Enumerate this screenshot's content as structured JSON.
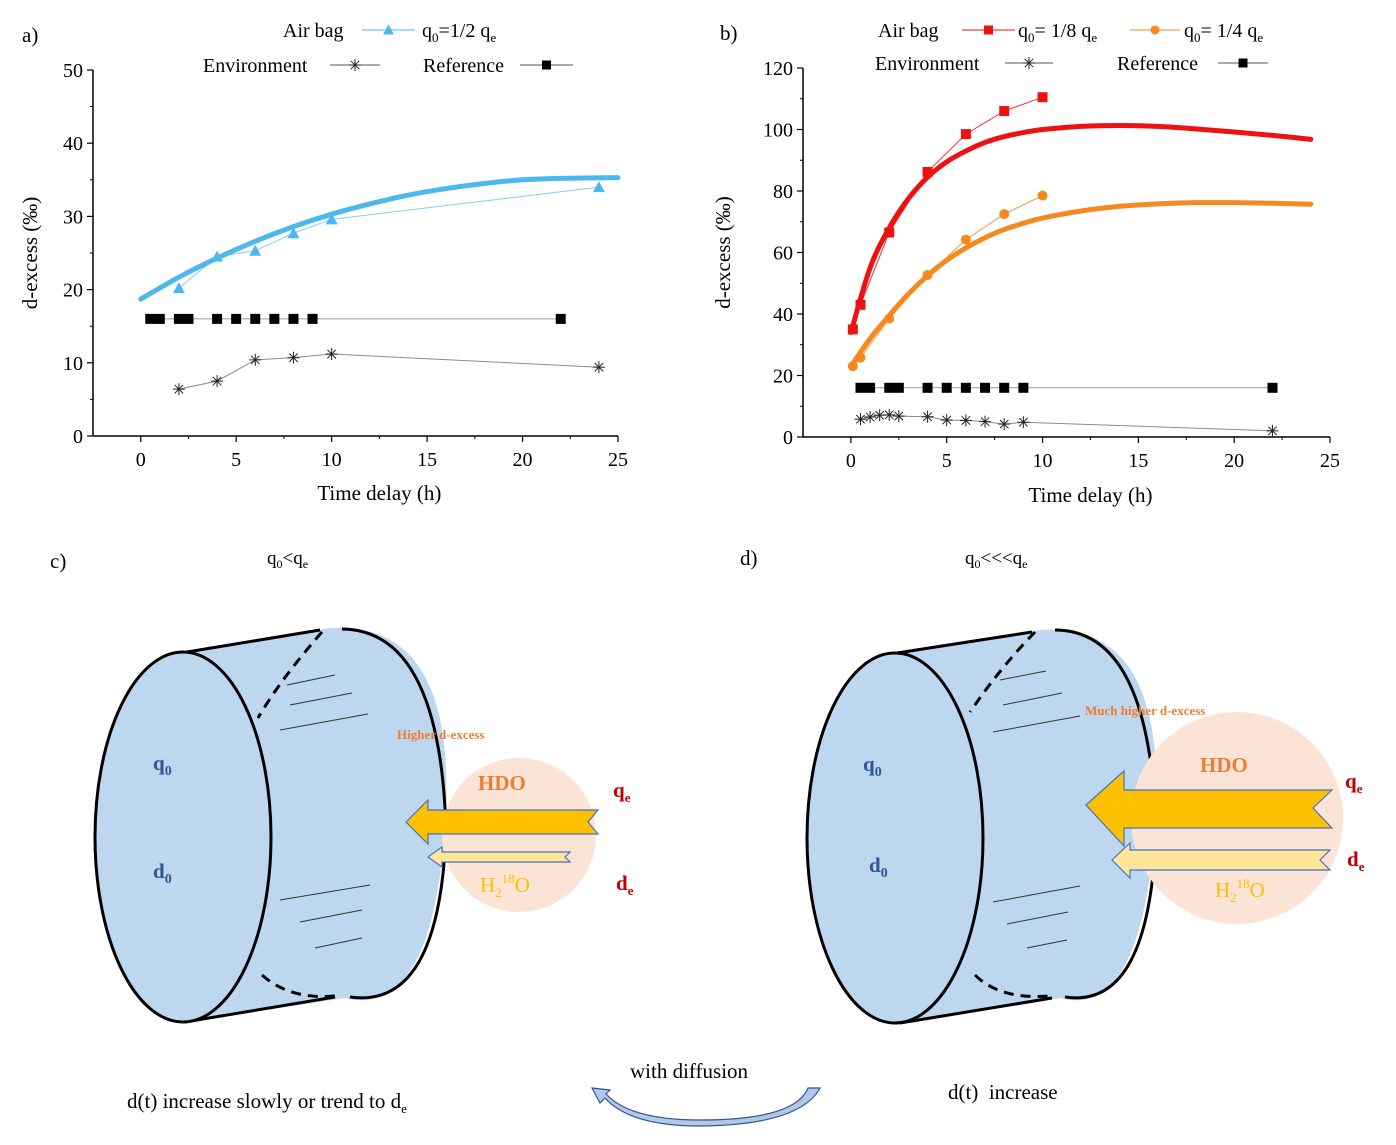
{
  "chart_data": [
    {
      "panel": "a)",
      "type": "line",
      "xlabel": "Time delay (h)",
      "ylabel": "d-excess (‰)",
      "xlim": [
        -2.5,
        25
      ],
      "ylim": [
        0,
        50
      ],
      "xticks": [
        0,
        5,
        10,
        15,
        20,
        25
      ],
      "yticks": [
        0,
        10,
        20,
        30,
        40,
        50
      ],
      "legend": {
        "placement": "top",
        "title": "Air bag",
        "entries": [
          {
            "label": "q0=1/2 qe",
            "main": "q",
            "sub": "0",
            "mid": "=1/2 q",
            "sub2": "e",
            "marker": "triangle",
            "color": "#4db8ee"
          },
          {
            "label": "Environment",
            "marker": "asterisk",
            "color": "#555555"
          },
          {
            "label": "Reference",
            "marker": "square",
            "color": "#000000"
          }
        ]
      },
      "series": [
        {
          "name": "q0=1/2 qe",
          "color": "#4db8ee",
          "marker": "triangle",
          "x": [
            2,
            4,
            6,
            8,
            10,
            24
          ],
          "y": [
            20.2,
            24.5,
            25.3,
            27.7,
            29.6,
            34.0
          ]
        },
        {
          "name": "Environment",
          "color": "#555555",
          "marker": "asterisk",
          "x": [
            2,
            4,
            6,
            8,
            10,
            24
          ],
          "y": [
            6.4,
            7.5,
            10.4,
            10.7,
            11.2,
            9.4
          ]
        },
        {
          "name": "Reference",
          "color": "#000000",
          "marker": "square",
          "x": [
            0.5,
            1,
            2,
            2.5,
            4,
            5,
            6,
            7,
            8,
            9,
            22
          ],
          "y": [
            16,
            16,
            16,
            16,
            16,
            16,
            16,
            16,
            16,
            16,
            16
          ]
        }
      ],
      "fits": [
        {
          "name": "q0=1/2 qe fit",
          "color": "#4db8ee",
          "x": [
            0,
            2,
            4,
            6,
            8,
            10,
            12,
            14,
            16,
            18,
            20,
            22,
            25
          ],
          "y": [
            18.7,
            21.7,
            24.3,
            26.6,
            28.6,
            30.3,
            31.7,
            32.9,
            33.8,
            34.5,
            35.0,
            35.2,
            35.3
          ]
        }
      ]
    },
    {
      "panel": "b)",
      "type": "line",
      "xlabel": "Time delay (h)",
      "ylabel": "d-excess (‰)",
      "xlim": [
        -2.5,
        25
      ],
      "ylim": [
        0,
        120
      ],
      "xticks": [
        0,
        5,
        10,
        15,
        20,
        25
      ],
      "yticks": [
        0,
        20,
        40,
        60,
        80,
        100,
        120
      ],
      "legend": {
        "placement": "top",
        "title": "Air bag",
        "entries": [
          {
            "label": "q0= 1/8 qe",
            "main": "q",
            "sub": "0",
            "mid": "= 1/8 q",
            "sub2": "e",
            "marker": "square",
            "color": "#ee1111"
          },
          {
            "label": "q0= 1/4 qe",
            "main": "q",
            "sub": "0",
            "mid": "= 1/4 q",
            "sub2": "e",
            "marker": "circle",
            "color": "#f5891f"
          },
          {
            "label": "Environment",
            "marker": "asterisk",
            "color": "#555555"
          },
          {
            "label": "Reference",
            "marker": "square",
            "color": "#000000"
          }
        ]
      },
      "series": [
        {
          "name": "q0= 1/8 qe",
          "color": "#ee1111",
          "marker": "square",
          "x": [
            0.1,
            0.5,
            2,
            4,
            6,
            8,
            10
          ],
          "y": [
            35,
            43,
            66.5,
            86.2,
            98.5,
            106,
            110.5
          ]
        },
        {
          "name": "q0= 1/4 qe",
          "color": "#f5891f",
          "marker": "circle",
          "x": [
            0.1,
            0.5,
            2,
            4,
            6,
            8,
            10
          ],
          "y": [
            23,
            25.8,
            38.5,
            52.7,
            64.2,
            72.5,
            78.5
          ]
        },
        {
          "name": "Environment",
          "color": "#555555",
          "marker": "asterisk",
          "x": [
            0.5,
            1,
            1.5,
            2,
            2.5,
            4,
            5,
            6,
            7,
            8,
            9,
            22
          ],
          "y": [
            5.8,
            6.5,
            7.1,
            7.2,
            6.8,
            6.6,
            5.5,
            5.4,
            5.0,
            4.2,
            4.8,
            2.0
          ]
        },
        {
          "name": "Reference",
          "color": "#000000",
          "marker": "square",
          "x": [
            0.5,
            1,
            2,
            2.5,
            4,
            5,
            6,
            7,
            8,
            9,
            22
          ],
          "y": [
            16,
            16,
            16,
            16,
            16,
            16,
            16,
            16,
            16,
            16,
            16
          ]
        }
      ],
      "fits": [
        {
          "name": "q0= 1/8 qe fit",
          "color": "#ee1111",
          "x": [
            0,
            1,
            2,
            3,
            4,
            5,
            6,
            7,
            8,
            9,
            10,
            12,
            14,
            16,
            18,
            20,
            22,
            24
          ],
          "y": [
            34,
            55,
            68,
            77.5,
            84.5,
            89.5,
            93,
            95.8,
            97.7,
            99,
            100,
            101,
            101.3,
            101,
            100.2,
            99.2,
            98.1,
            96.8
          ]
        },
        {
          "name": "q0= 1/4 qe fit",
          "color": "#f5891f",
          "x": [
            0,
            1,
            2,
            3,
            4,
            5,
            6,
            7,
            8,
            9,
            10,
            12,
            14,
            16,
            18,
            20,
            22,
            24
          ],
          "y": [
            23,
            32,
            39.5,
            46.5,
            52.5,
            57.5,
            61.5,
            64.8,
            67.5,
            69.5,
            71.2,
            73.5,
            75,
            75.8,
            76.2,
            76.2,
            76,
            75.7
          ]
        }
      ]
    }
  ],
  "diagrams": {
    "c": {
      "label": "c)",
      "condition": {
        "a": "q",
        "a_sub": "0",
        "op": "<",
        "b": "q",
        "b_sub": "e"
      },
      "q0": {
        "main": "q",
        "sub": "0"
      },
      "d0": {
        "main": "d",
        "sub": "0"
      },
      "note": "Higher d-excess",
      "hdo": "HDO",
      "h218o": {
        "h": "H",
        "sub": "2",
        "sup": "18",
        "o": "O"
      },
      "qe": {
        "main": "q",
        "sub": "e"
      },
      "de": {
        "main": "d",
        "sub": "e"
      },
      "caption": {
        "main": "d(t) increase slowly or trend to d",
        "sub": "e"
      }
    },
    "d": {
      "label": "d)",
      "condition": {
        "a": "q",
        "a_sub": "0",
        "op": "<<<",
        "b": "q",
        "b_sub": "e"
      },
      "q0": {
        "main": "q",
        "sub": "0"
      },
      "d0": {
        "main": "d",
        "sub": "0"
      },
      "note": "Much higher d-excess",
      "hdo": "HDO",
      "h218o": {
        "h": "H",
        "sub": "2",
        "sup": "18",
        "o": "O"
      },
      "qe": {
        "main": "q",
        "sub": "e"
      },
      "de": {
        "main": "d",
        "sub": "e"
      },
      "caption": {
        "main": "d(t)  increase"
      }
    },
    "transition": "with diffusion"
  },
  "colors": {
    "cylinder_fill": "#bdd7ee",
    "circle_fill": "#fbe4d5",
    "hdo_text": "#ed7d31",
    "h218o_text": "#ffc000",
    "arrow_big": "#ffc000",
    "arrow_small": "#ffe699",
    "arrow_stroke": "#4472c4",
    "var_blue": "#2f5597",
    "var_red": "#c00000"
  }
}
